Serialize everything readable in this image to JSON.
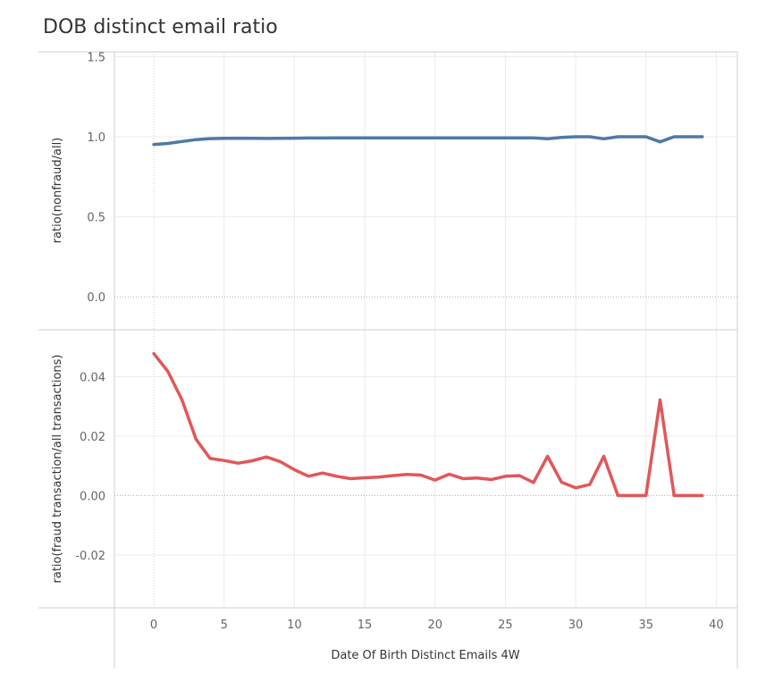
{
  "chart_data": {
    "title": "DOB distinct email ratio",
    "type": "line",
    "xlabel": "Date Of Birth Distinct Emails 4W",
    "x_ticks": [
      0,
      5,
      10,
      15,
      20,
      25,
      30,
      35,
      40
    ],
    "xlim": [
      -2.8,
      41.5
    ],
    "grid": true,
    "panels": [
      {
        "ylabel": "ratio(nonfraud/all)",
        "ylim": [
          -0.2,
          1.53
        ],
        "y_ticks": [
          0.0,
          0.5,
          1.0,
          1.5
        ],
        "y_tick_labels": [
          "0.0",
          "0.5",
          "1.0",
          "1.5"
        ],
        "series": [
          {
            "color": "#4e79a7",
            "x": [
              0,
              1,
              2,
              3,
              4,
              5,
              6,
              7,
              8,
              9,
              10,
              11,
              12,
              13,
              14,
              15,
              16,
              17,
              18,
              19,
              20,
              21,
              22,
              23,
              24,
              25,
              26,
              27,
              28,
              29,
              30,
              31,
              32,
              33,
              34,
              35,
              36,
              37,
              38,
              39
            ],
            "y": [
              0.952,
              0.958,
              0.97,
              0.982,
              0.988,
              0.99,
              0.991,
              0.99,
              0.989,
              0.99,
              0.991,
              0.992,
              0.992,
              0.993,
              0.993,
              0.993,
              0.993,
              0.993,
              0.993,
              0.993,
              0.993,
              0.993,
              0.993,
              0.993,
              0.993,
              0.993,
              0.993,
              0.993,
              0.987,
              0.996,
              1.0,
              1.0,
              0.987,
              1.0,
              1.0,
              1.0,
              0.968,
              1.0,
              1.0,
              1.0
            ]
          }
        ]
      },
      {
        "ylabel": "ratio(fraud transaction/all transactions)",
        "ylim": [
          -0.0375,
          0.0555
        ],
        "y_ticks": [
          -0.02,
          0.0,
          0.02,
          0.04
        ],
        "y_tick_labels": [
          "-0.02",
          "0.00",
          "0.02",
          "0.04"
        ],
        "series": [
          {
            "color": "#e15759",
            "x": [
              0,
              1,
              2,
              3,
              4,
              5,
              6,
              7,
              8,
              9,
              10,
              11,
              12,
              13,
              14,
              15,
              16,
              17,
              18,
              19,
              20,
              21,
              22,
              23,
              24,
              25,
              26,
              27,
              28,
              29,
              30,
              31,
              32,
              33,
              34,
              35,
              36,
              37,
              38,
              39
            ],
            "y": [
              0.0478,
              0.0418,
              0.0323,
              0.019,
              0.0125,
              0.0118,
              0.0109,
              0.0117,
              0.013,
              0.0114,
              0.0087,
              0.0065,
              0.0076,
              0.0065,
              0.0057,
              0.006,
              0.0062,
              0.0067,
              0.0071,
              0.0069,
              0.0052,
              0.0072,
              0.0057,
              0.0059,
              0.0054,
              0.0065,
              0.0067,
              0.0044,
              0.0132,
              0.0045,
              0.0026,
              0.0037,
              0.0132,
              0.0,
              0.0,
              0.0,
              0.0322,
              0.0,
              0.0,
              0.0
            ]
          }
        ]
      }
    ]
  }
}
